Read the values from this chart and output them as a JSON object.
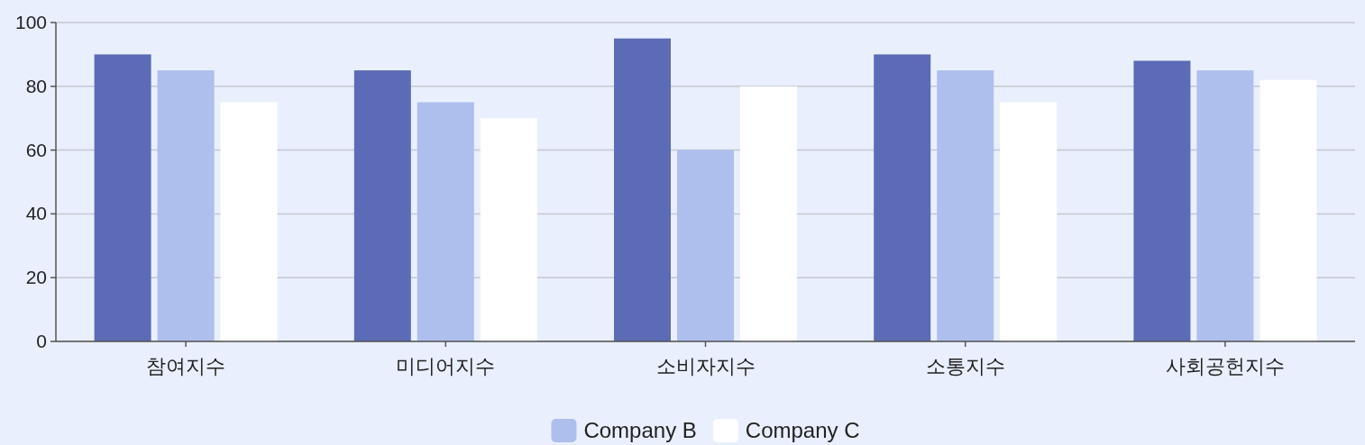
{
  "chart_data": {
    "type": "bar",
    "categories": [
      "참여지수",
      "미디어지수",
      "소비자지수",
      "소통지수",
      "사회공헌지수"
    ],
    "series": [
      {
        "color": "#5b6bb5",
        "values": [
          90,
          85,
          95,
          90,
          88
        ]
      },
      {
        "name": "Company B",
        "color": "#aebfee",
        "values": [
          85,
          75,
          60,
          85,
          85
        ]
      },
      {
        "name": "Company C",
        "color": "#ffffff",
        "values": [
          75,
          70,
          80,
          75,
          82
        ]
      }
    ],
    "ylim": [
      0,
      100
    ],
    "yticks": [
      0,
      20,
      40,
      60,
      80,
      100
    ],
    "grid": "y",
    "legend": "bottom"
  }
}
